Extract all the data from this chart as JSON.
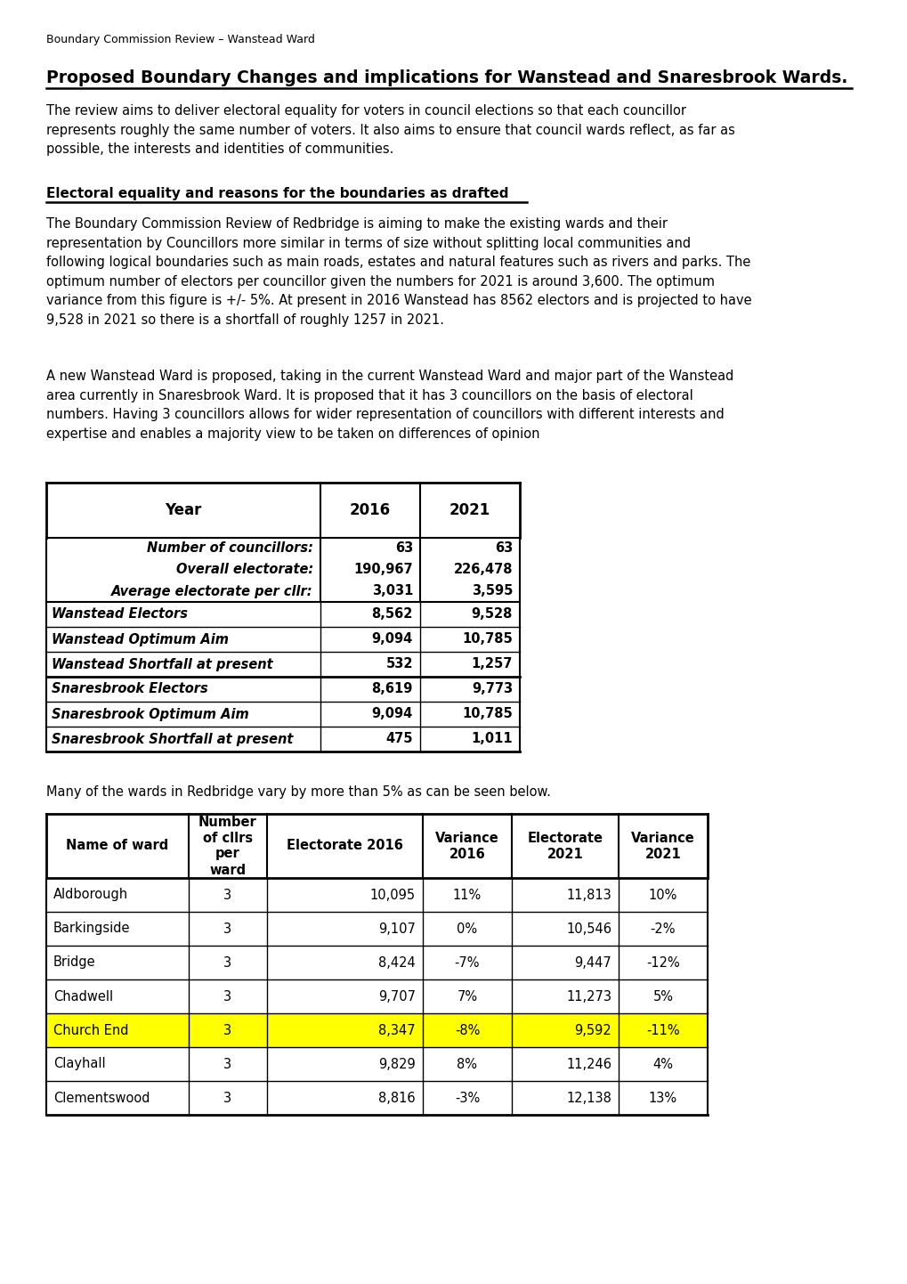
{
  "header": "Boundary Commission Review – Wanstead Ward",
  "title": "Proposed Boundary Changes and implications for Wanstead and Snaresbrook Wards.",
  "para1": "The review aims to deliver electoral equality for voters in council elections so that each councillor\nrepresents roughly the same number of voters. It also aims to ensure that council wards reflect, as far as\npossible, the interests and identities of communities.",
  "section1_heading": "Electoral equality and reasons for the boundaries as drafted",
  "para2": "The Boundary Commission Review of Redbridge is aiming to make the existing wards and their\nrepresentation by Councillors more similar in terms of size without splitting local communities and\nfollowing logical boundaries such as main roads, estates and natural features such as rivers and parks. The\noptimum number of electors per councillor given the numbers for 2021 is around 3,600. The optimum\nvariance from this figure is +/- 5%. At present in 2016 Wanstead has 8562 electors and is projected to have\n9,528 in 2021 so there is a shortfall of roughly 1257 in 2021.",
  "para3": "A new Wanstead Ward is proposed, taking in the current Wanstead Ward and major part of the Wanstead\narea currently in Snaresbrook Ward. It is proposed that it has 3 councillors on the basis of electoral\nnumbers. Having 3 councillors allows for wider representation of councillors with different interests and\nexpertise and enables a majority view to be taken on differences of opinion",
  "table1_headers": [
    "Year",
    "2016",
    "2021"
  ],
  "table1_group1": [
    [
      "Number of councillors:",
      "63",
      "63"
    ],
    [
      "Overall electorate:",
      "190,967",
      "226,478"
    ],
    [
      "Average electorate per cllr:",
      "3,031",
      "3,595"
    ]
  ],
  "table1_group2": [
    [
      "Wanstead Electors",
      "8,562",
      "9,528"
    ],
    [
      "Wanstead Optimum Aim",
      "9,094",
      "10,785"
    ],
    [
      "Wanstead Shortfall at present",
      "532",
      "1,257"
    ]
  ],
  "table1_group3": [
    [
      "Snaresbrook Electors",
      "8,619",
      "9,773"
    ],
    [
      "Snaresbrook Optimum Aim",
      "9,094",
      "10,785"
    ],
    [
      "Snaresbrook Shortfall at present",
      "475",
      "1,011"
    ]
  ],
  "para4": "Many of the wards in Redbridge vary by more than 5% as can be seen below.",
  "table2_headers": [
    "Name of ward",
    "Number\nof cllrs\nper\nward",
    "Electorate 2016",
    "Variance\n2016",
    "Electorate\n2021",
    "Variance\n2021"
  ],
  "table2_rows": [
    [
      "Aldborough",
      "3",
      "10,095",
      "11%",
      "11,813",
      "10%"
    ],
    [
      "Barkingside",
      "3",
      "9,107",
      "0%",
      "10,546",
      "-2%"
    ],
    [
      "Bridge",
      "3",
      "8,424",
      "-7%",
      "9,447",
      "-12%"
    ],
    [
      "Chadwell",
      "3",
      "9,707",
      "7%",
      "11,273",
      "5%"
    ],
    [
      "Church End",
      "3",
      "8,347",
      "-8%",
      "9,592",
      "-11%"
    ],
    [
      "Clayhall",
      "3",
      "9,829",
      "8%",
      "11,246",
      "4%"
    ],
    [
      "Clementswood",
      "3",
      "8,816",
      "-3%",
      "12,138",
      "13%"
    ]
  ],
  "highlight_row": 4,
  "highlight_color": "#FFFF00",
  "bg_color": "#FFFFFF",
  "text_color": "#000000"
}
